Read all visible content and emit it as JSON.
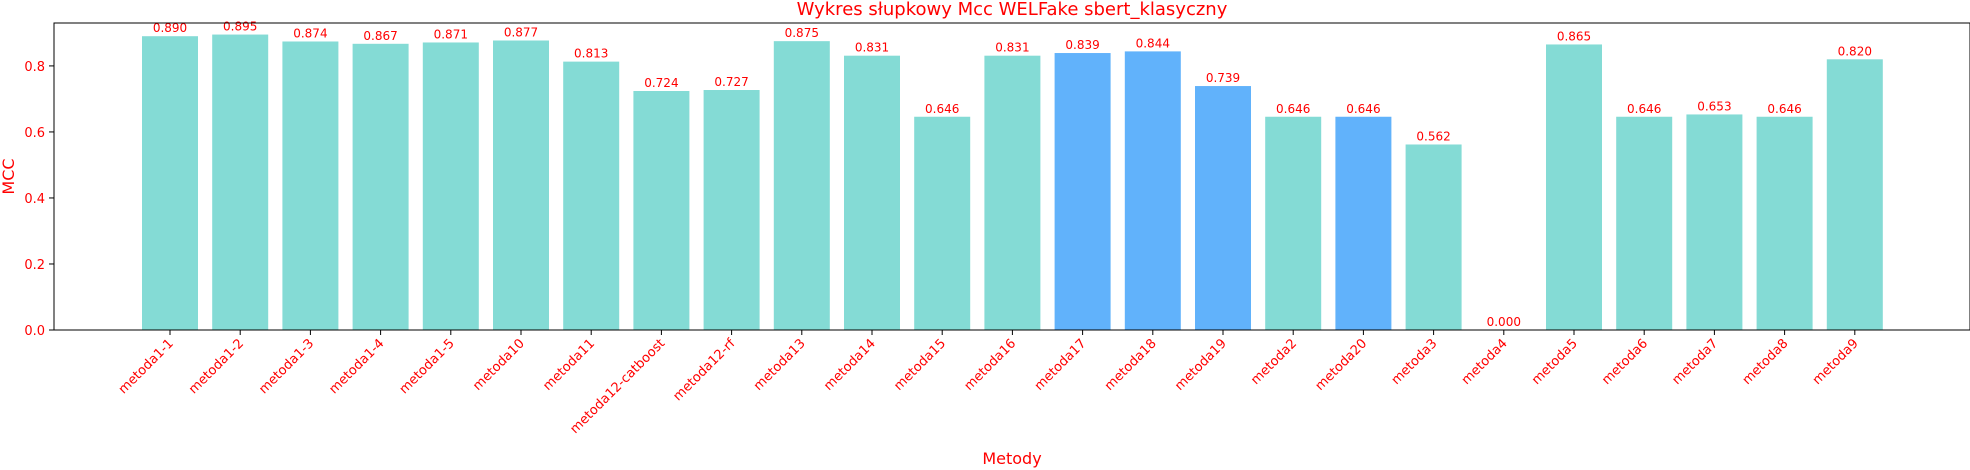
{
  "chart_data": {
    "type": "bar",
    "title": "Wykres słupkowy Mcc WELFake sbert_klasyczny",
    "xlabel": "Metody",
    "ylabel": "MCC",
    "ylim": [
      0,
      0.93
    ],
    "yticks": [
      "0.0",
      "0.2",
      "0.4",
      "0.6",
      "0.8"
    ],
    "grid": false,
    "categories": [
      "metoda1-1",
      "metoda1-2",
      "metoda1-3",
      "metoda1-4",
      "metoda1-5",
      "metoda10",
      "metoda11",
      "metoda12-catboost",
      "metoda12-rf",
      "metoda13",
      "metoda14",
      "metoda15",
      "metoda16",
      "metoda17",
      "metoda18",
      "metoda19",
      "metoda2",
      "metoda20",
      "metoda3",
      "metoda4",
      "metoda5",
      "metoda6",
      "metoda7",
      "metoda8",
      "metoda9"
    ],
    "values": [
      0.89,
      0.895,
      0.874,
      0.867,
      0.871,
      0.877,
      0.813,
      0.724,
      0.727,
      0.875,
      0.831,
      0.646,
      0.831,
      0.839,
      0.844,
      0.739,
      0.646,
      0.646,
      0.562,
      0.0,
      0.865,
      0.646,
      0.653,
      0.646,
      0.82
    ],
    "value_labels": [
      "0.890",
      "0.895",
      "0.874",
      "0.867",
      "0.871",
      "0.877",
      "0.813",
      "0.724",
      "0.727",
      "0.875",
      "0.831",
      "0.646",
      "0.831",
      "0.839",
      "0.844",
      "0.739",
      "0.646",
      "0.646",
      "0.562",
      "0.000",
      "0.865",
      "0.646",
      "0.653",
      "0.646",
      "0.820"
    ],
    "highlighted": [
      "metoda17",
      "metoda18",
      "metoda19",
      "metoda20"
    ],
    "colors": {
      "bar": "#84dbd5",
      "bar_highlight": "#61b2fb",
      "text": "#ff0000",
      "axis": "#000000"
    }
  }
}
